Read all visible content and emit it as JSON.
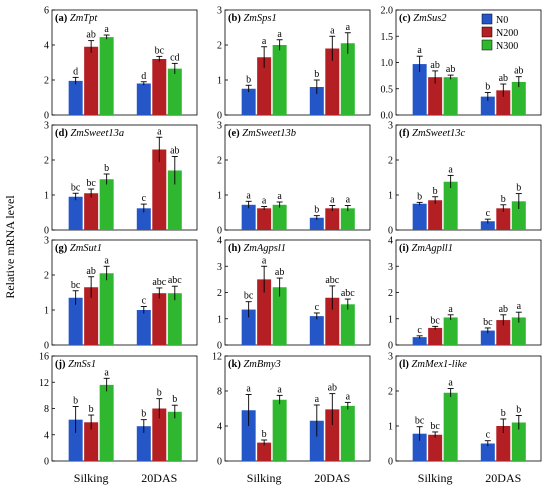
{
  "figure": {
    "ylabel": "Relative mRNA level",
    "groups": [
      "Silking",
      "20DAS"
    ],
    "series_names": [
      "N0",
      "N200",
      "N300"
    ],
    "colors": {
      "N0": "#2456c8",
      "N200": "#b41f24",
      "N300": "#2fb82f"
    }
  },
  "chart_data": [
    {
      "type": "bar",
      "panel": "(a)",
      "gene": "ZmTpt",
      "categories": [
        "Silking",
        "20DAS"
      ],
      "ylim": [
        0,
        6
      ],
      "yticks": [
        0,
        2,
        4,
        6
      ],
      "series": [
        {
          "name": "N0",
          "values": [
            1.95,
            1.8
          ],
          "err": [
            0.2,
            0.1
          ]
        },
        {
          "name": "N200",
          "values": [
            3.9,
            3.2
          ],
          "err": [
            0.35,
            0.15
          ]
        },
        {
          "name": "N300",
          "values": [
            4.45,
            2.65
          ],
          "err": [
            0.12,
            0.3
          ]
        }
      ],
      "letters": [
        [
          "d",
          "ab",
          "a"
        ],
        [
          "d",
          "bc",
          "cd"
        ]
      ]
    },
    {
      "type": "bar",
      "panel": "(b)",
      "gene": "ZmSps1",
      "categories": [
        "Silking",
        "20DAS"
      ],
      "ylim": [
        0,
        3
      ],
      "yticks": [
        0,
        1,
        2,
        3
      ],
      "series": [
        {
          "name": "N0",
          "values": [
            0.75,
            0.8
          ],
          "err": [
            0.1,
            0.2
          ]
        },
        {
          "name": "N200",
          "values": [
            1.65,
            1.9
          ],
          "err": [
            0.3,
            0.35
          ]
        },
        {
          "name": "N300",
          "values": [
            2.0,
            2.05
          ],
          "err": [
            0.15,
            0.3
          ]
        }
      ],
      "letters": [
        [
          "b",
          "a",
          "a"
        ],
        [
          "b",
          "a",
          "a"
        ]
      ]
    },
    {
      "type": "bar",
      "panel": "(c)",
      "gene": "ZmSus2",
      "categories": [
        "Silking",
        "20DAS"
      ],
      "ylim": [
        0,
        2.0
      ],
      "yticks": [
        0.0,
        0.5,
        1.0,
        1.5,
        2.0
      ],
      "series": [
        {
          "name": "N0",
          "values": [
            0.97,
            0.35
          ],
          "err": [
            0.15,
            0.08
          ]
        },
        {
          "name": "N200",
          "values": [
            0.72,
            0.47
          ],
          "err": [
            0.12,
            0.12
          ]
        },
        {
          "name": "N300",
          "values": [
            0.72,
            0.63
          ],
          "err": [
            0.04,
            0.1
          ]
        }
      ],
      "letters": [
        [
          "a",
          "ab",
          "ab"
        ],
        [
          "b",
          "ab",
          "ab"
        ]
      ]
    },
    {
      "type": "bar",
      "panel": "(d)",
      "gene": "ZmSweet13a",
      "categories": [
        "Silking",
        "20DAS"
      ],
      "ylim": [
        0,
        3
      ],
      "yticks": [
        0,
        1,
        2,
        3
      ],
      "series": [
        {
          "name": "N0",
          "values": [
            0.95,
            0.62
          ],
          "err": [
            0.1,
            0.12
          ]
        },
        {
          "name": "N200",
          "values": [
            1.05,
            2.3
          ],
          "err": [
            0.12,
            0.35
          ]
        },
        {
          "name": "N300",
          "values": [
            1.45,
            1.7
          ],
          "err": [
            0.15,
            0.4
          ]
        }
      ],
      "letters": [
        [
          "bc",
          "bc",
          "b"
        ],
        [
          "c",
          "a",
          "ab"
        ]
      ]
    },
    {
      "type": "bar",
      "panel": "(e)",
      "gene": "ZmSweet13b",
      "categories": [
        "Silking",
        "20DAS"
      ],
      "ylim": [
        0,
        3
      ],
      "yticks": [
        0,
        1,
        2,
        3
      ],
      "series": [
        {
          "name": "N0",
          "values": [
            0.72,
            0.35
          ],
          "err": [
            0.1,
            0.06
          ]
        },
        {
          "name": "N200",
          "values": [
            0.62,
            0.62
          ],
          "err": [
            0.05,
            0.08
          ]
        },
        {
          "name": "N300",
          "values": [
            0.72,
            0.62
          ],
          "err": [
            0.08,
            0.08
          ]
        }
      ],
      "letters": [
        [
          "a",
          "a",
          "a"
        ],
        [
          "b",
          "a",
          "a"
        ]
      ]
    },
    {
      "type": "bar",
      "panel": "(f)",
      "gene": "ZmSweet13c",
      "categories": [
        "Silking",
        "20DAS"
      ],
      "ylim": [
        0,
        3
      ],
      "yticks": [
        0,
        1,
        2,
        3
      ],
      "series": [
        {
          "name": "N0",
          "values": [
            0.75,
            0.25
          ],
          "err": [
            0.04,
            0.06
          ]
        },
        {
          "name": "N200",
          "values": [
            0.85,
            0.62
          ],
          "err": [
            0.1,
            0.1
          ]
        },
        {
          "name": "N300",
          "values": [
            1.38,
            0.82
          ],
          "err": [
            0.18,
            0.22
          ]
        }
      ],
      "letters": [
        [
          "b",
          "b",
          "a"
        ],
        [
          "c",
          "b",
          "b"
        ]
      ]
    },
    {
      "type": "bar",
      "panel": "(g)",
      "gene": "ZmSut1",
      "categories": [
        "Silking",
        "20DAS"
      ],
      "ylim": [
        0,
        3
      ],
      "yticks": [
        0,
        1,
        2,
        3
      ],
      "series": [
        {
          "name": "N0",
          "values": [
            1.35,
            1.0
          ],
          "err": [
            0.2,
            0.1
          ]
        },
        {
          "name": "N200",
          "values": [
            1.65,
            1.48
          ],
          "err": [
            0.3,
            0.15
          ]
        },
        {
          "name": "N300",
          "values": [
            2.05,
            1.48
          ],
          "err": [
            0.2,
            0.2
          ]
        }
      ],
      "letters": [
        [
          "bc",
          "ab",
          "a"
        ],
        [
          "c",
          "abc",
          "abc"
        ]
      ]
    },
    {
      "type": "bar",
      "panel": "(h)",
      "gene": "ZmAgpsl1",
      "categories": [
        "Silking",
        "20DAS"
      ],
      "ylim": [
        0,
        4
      ],
      "yticks": [
        0,
        1,
        2,
        3,
        4
      ],
      "series": [
        {
          "name": "N0",
          "values": [
            1.35,
            1.1
          ],
          "err": [
            0.3,
            0.12
          ]
        },
        {
          "name": "N200",
          "values": [
            2.5,
            1.8
          ],
          "err": [
            0.5,
            0.45
          ]
        },
        {
          "name": "N300",
          "values": [
            2.2,
            1.55
          ],
          "err": [
            0.35,
            0.2
          ]
        }
      ],
      "letters": [
        [
          "bc",
          "a",
          "ab"
        ],
        [
          "c",
          "abc",
          "abc"
        ]
      ]
    },
    {
      "type": "bar",
      "panel": "(i)",
      "gene": "ZmAgpll1",
      "categories": [
        "Silking",
        "20DAS"
      ],
      "ylim": [
        0,
        4
      ],
      "yticks": [
        0,
        1,
        2,
        3,
        4
      ],
      "series": [
        {
          "name": "N0",
          "values": [
            0.3,
            0.55
          ],
          "err": [
            0.05,
            0.1
          ]
        },
        {
          "name": "N200",
          "values": [
            0.65,
            0.95
          ],
          "err": [
            0.06,
            0.2
          ]
        },
        {
          "name": "N300",
          "values": [
            1.05,
            1.05
          ],
          "err": [
            0.1,
            0.2
          ]
        }
      ],
      "letters": [
        [
          "c",
          "bc",
          "a"
        ],
        [
          "bc",
          "ab",
          "a"
        ]
      ]
    },
    {
      "type": "bar",
      "panel": "(j)",
      "gene": "ZmSs1",
      "categories": [
        "Silking",
        "20DAS"
      ],
      "ylim": [
        0,
        16
      ],
      "yticks": [
        0,
        4,
        8,
        12,
        16
      ],
      "series": [
        {
          "name": "N0",
          "values": [
            6.3,
            5.3
          ],
          "err": [
            2.0,
            1.0
          ]
        },
        {
          "name": "N200",
          "values": [
            5.9,
            8.0
          ],
          "err": [
            1.1,
            1.5
          ]
        },
        {
          "name": "N300",
          "values": [
            11.6,
            7.5
          ],
          "err": [
            1.0,
            1.0
          ]
        }
      ],
      "letters": [
        [
          "b",
          "b",
          "a"
        ],
        [
          "b",
          "b",
          "b"
        ]
      ]
    },
    {
      "type": "bar",
      "panel": "(k)",
      "gene": "ZmBmy3",
      "categories": [
        "Silking",
        "20DAS"
      ],
      "ylim": [
        0,
        12
      ],
      "yticks": [
        0,
        4,
        8,
        12
      ],
      "series": [
        {
          "name": "N0",
          "values": [
            5.8,
            4.6
          ],
          "err": [
            1.8,
            1.8
          ]
        },
        {
          "name": "N200",
          "values": [
            2.1,
            5.9
          ],
          "err": [
            0.3,
            1.8
          ]
        },
        {
          "name": "N300",
          "values": [
            7.0,
            6.3
          ],
          "err": [
            0.5,
            0.4
          ]
        }
      ],
      "letters": [
        [
          "a",
          "b",
          "a"
        ],
        [
          "a",
          "ab",
          "a"
        ]
      ]
    },
    {
      "type": "bar",
      "panel": "(l)",
      "gene": "ZmMex1-like",
      "categories": [
        "Silking",
        "20DAS"
      ],
      "ylim": [
        0,
        3
      ],
      "yticks": [
        0,
        1,
        2,
        3
      ],
      "series": [
        {
          "name": "N0",
          "values": [
            0.78,
            0.5
          ],
          "err": [
            0.2,
            0.08
          ]
        },
        {
          "name": "N200",
          "values": [
            0.75,
            1.0
          ],
          "err": [
            0.08,
            0.2
          ]
        },
        {
          "name": "N300",
          "values": [
            1.95,
            1.1
          ],
          "err": [
            0.12,
            0.2
          ]
        }
      ],
      "letters": [
        [
          "bc",
          "bc",
          "a"
        ],
        [
          "c",
          "b",
          "b"
        ]
      ]
    }
  ]
}
